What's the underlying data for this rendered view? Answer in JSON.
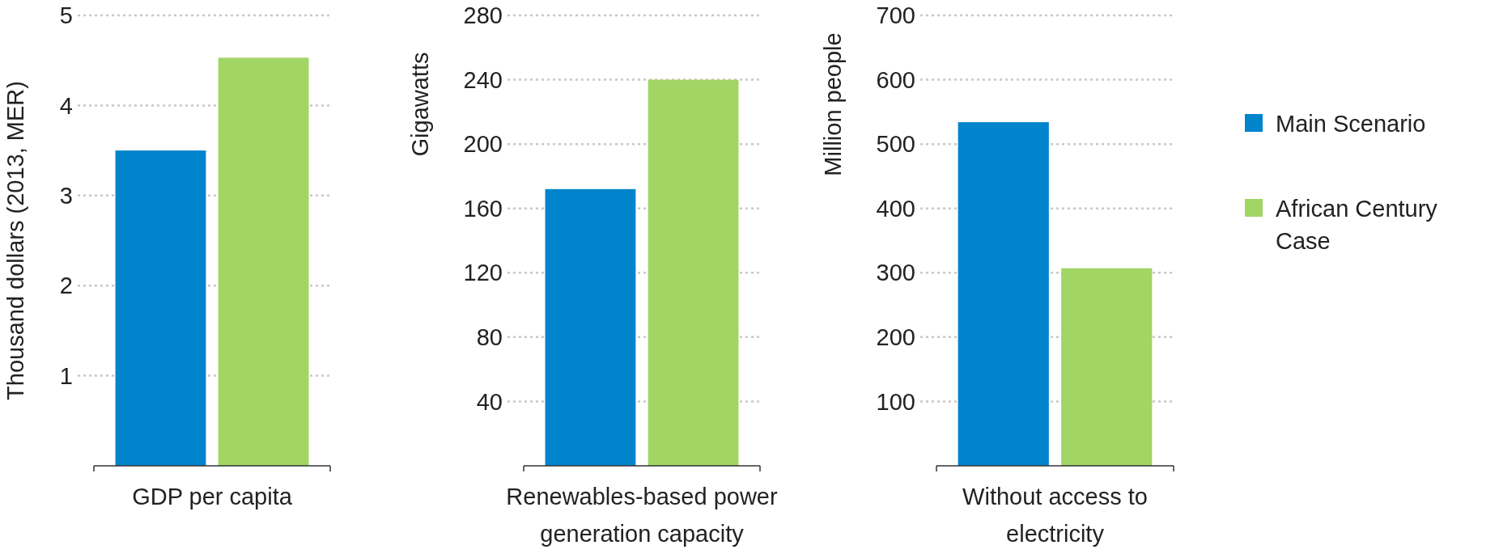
{
  "chart_data": [
    {
      "type": "bar",
      "ylabel": "Thousand dollars (2013, MER)",
      "categories": [
        "GDP per capita"
      ],
      "ylim": [
        0,
        5
      ],
      "yticks": [
        1,
        2,
        3,
        4,
        5
      ],
      "grid": "y",
      "legend": false,
      "series": [
        {
          "color": "#0084cc",
          "values": [
            3.5
          ]
        },
        {
          "color": "#a1d564",
          "values": [
            4.53
          ]
        }
      ]
    },
    {
      "type": "bar",
      "ylabel": "Gigawatts",
      "categories": [
        "Renewables-based power generation capacity"
      ],
      "ylim": [
        0,
        280
      ],
      "yticks": [
        40,
        80,
        120,
        160,
        200,
        240,
        280
      ],
      "grid": "y",
      "legend": false,
      "series": [
        {
          "color": "#0084cc",
          "values": [
            172
          ]
        },
        {
          "color": "#a1d564",
          "values": [
            240
          ]
        }
      ]
    },
    {
      "type": "bar",
      "ylabel": "Million people",
      "categories": [
        "Without access to electricity"
      ],
      "ylim": [
        0,
        700
      ],
      "yticks": [
        100,
        200,
        300,
        400,
        500,
        600,
        700
      ],
      "grid": "y",
      "legend": "right",
      "series": [
        {
          "name": "Main Scenario",
          "color": "#0084cc",
          "values": [
            534
          ]
        },
        {
          "name": "African Century Case",
          "color": "#a1d564",
          "values": [
            307
          ]
        }
      ]
    }
  ]
}
